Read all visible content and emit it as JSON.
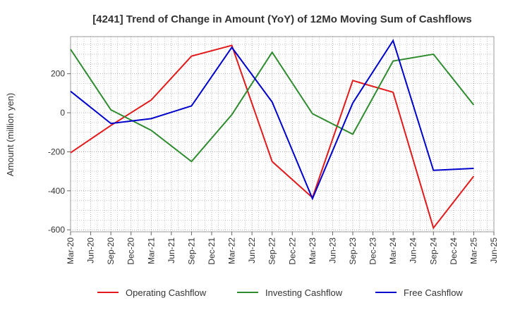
{
  "chart_data": {
    "type": "line",
    "title": "[4241]  Trend of Change in Amount (YoY) of 12Mo Moving Sum of Cashflows",
    "xlabel": "",
    "ylabel": "Amount (million yen)",
    "categories": [
      "Mar-20",
      "Jun-20",
      "Sep-20",
      "Dec-20",
      "Mar-21",
      "Jun-21",
      "Sep-21",
      "Dec-21",
      "Mar-22",
      "Jun-22",
      "Sep-22",
      "Dec-22",
      "Mar-23",
      "Jun-23",
      "Sep-23",
      "Dec-23",
      "Mar-24",
      "Jun-24",
      "Sep-24",
      "Dec-24",
      "Mar-25",
      "Jun-25"
    ],
    "ylim": [
      -610,
      390
    ],
    "yticks": [
      -600,
      -400,
      -200,
      0,
      200
    ],
    "ytick_labels": [
      "-600",
      "-400",
      "-200",
      "0",
      "200"
    ],
    "grid": true,
    "legend_position": "bottom",
    "series": [
      {
        "name": "Operating Cashflow",
        "color": "#e31a1c",
        "values": [
          -205,
          null,
          -65,
          null,
          65,
          null,
          290,
          null,
          345,
          null,
          -250,
          null,
          -435,
          null,
          165,
          null,
          105,
          null,
          -590,
          null,
          -325,
          null
        ]
      },
      {
        "name": "Investing Cashflow",
        "color": "#2e8b2e",
        "values": [
          325,
          null,
          15,
          null,
          -90,
          null,
          -250,
          null,
          -10,
          null,
          310,
          null,
          -5,
          null,
          -110,
          null,
          265,
          null,
          300,
          null,
          40,
          null
        ]
      },
      {
        "name": "Free Cashflow",
        "color": "#0000cc",
        "values": [
          110,
          null,
          -55,
          null,
          -30,
          null,
          35,
          null,
          335,
          null,
          55,
          null,
          -440,
          null,
          50,
          null,
          370,
          null,
          -295,
          null,
          -285,
          null
        ]
      }
    ]
  }
}
